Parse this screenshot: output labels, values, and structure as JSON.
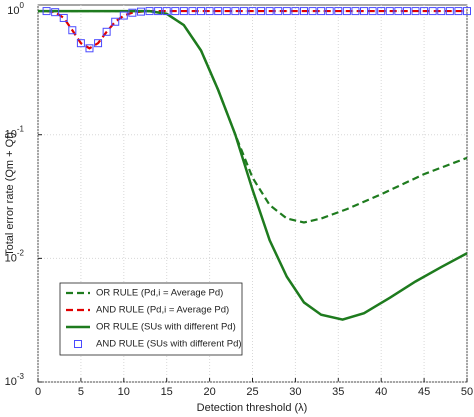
{
  "chart_data": {
    "type": "line",
    "x_label": "Detection threshold (λ)",
    "y_label": "Total error rate (Qm + Qf)",
    "xlim": [
      0,
      50
    ],
    "xticks": [
      0,
      5,
      10,
      15,
      20,
      25,
      30,
      35,
      40,
      45,
      50
    ],
    "ylim": [
      0.001,
      1.12
    ],
    "yticks": [
      {
        "value": 0.001,
        "label": "10",
        "exponent": "-3"
      },
      {
        "value": 0.01,
        "label": "10",
        "exponent": "-2"
      },
      {
        "value": 0.1,
        "label": "10",
        "exponent": "-1"
      },
      {
        "value": 1,
        "label": "10",
        "exponent": "0"
      }
    ],
    "y_scale": "log",
    "grid": true,
    "legend_position": "lower left",
    "series": [
      {
        "name": "OR RULE (Pd,i = Average Pd)",
        "color": "#1e7b1e",
        "line_style": "dashed",
        "marker": "none",
        "x": [
          0,
          5,
          10,
          13,
          15,
          17,
          19,
          21,
          23,
          25,
          27,
          29,
          31,
          33,
          36,
          40,
          45,
          50
        ],
        "values": [
          1,
          1,
          1,
          1,
          0.95,
          0.77,
          0.48,
          0.23,
          0.1,
          0.045,
          0.027,
          0.021,
          0.0195,
          0.021,
          0.025,
          0.033,
          0.048,
          0.065
        ]
      },
      {
        "name": "AND RULE (Pd,i = Average Pd)",
        "color": "#e00000",
        "line_style": "dashed",
        "marker": "none",
        "x": [
          1,
          2,
          3,
          4,
          5,
          6,
          7,
          8,
          9,
          10,
          11,
          12,
          13,
          20,
          30,
          40,
          50
        ],
        "values": [
          1,
          0.98,
          0.88,
          0.7,
          0.55,
          0.5,
          0.55,
          0.68,
          0.82,
          0.92,
          0.97,
          0.99,
          1,
          1,
          1,
          1,
          1
        ]
      },
      {
        "name": "OR RULE (SUs with different Pd)",
        "color": "#1e7b1e",
        "line_style": "solid",
        "marker": "none",
        "x": [
          0,
          5,
          10,
          13,
          15,
          17,
          19,
          21,
          23,
          25,
          27,
          29,
          31,
          33,
          35.5,
          38,
          41,
          44,
          47,
          50
        ],
        "values": [
          1,
          1,
          1,
          1,
          0.95,
          0.77,
          0.48,
          0.23,
          0.1,
          0.036,
          0.014,
          0.0071,
          0.0044,
          0.0035,
          0.0032,
          0.0036,
          0.0048,
          0.0065,
          0.0085,
          0.011
        ]
      },
      {
        "name": "AND RULE (SUs with different Pd)",
        "color": "#4a4aff",
        "line_style": "none",
        "marker": "square",
        "x": [
          1,
          2,
          3,
          4,
          5,
          6,
          7,
          8,
          9,
          10,
          11,
          12,
          13,
          14,
          15,
          16,
          17,
          18,
          19,
          20,
          21,
          22,
          23,
          24,
          25,
          26,
          27,
          28,
          29,
          30,
          31,
          32,
          33,
          34,
          35,
          36,
          37,
          38,
          39,
          40,
          41,
          42,
          43,
          44,
          45,
          46,
          47,
          48,
          49,
          50
        ],
        "values": [
          1,
          0.98,
          0.88,
          0.7,
          0.55,
          0.5,
          0.55,
          0.68,
          0.82,
          0.92,
          0.97,
          0.99,
          1,
          1,
          1,
          1,
          1,
          1,
          1,
          1,
          1,
          1,
          1,
          1,
          1,
          1,
          1,
          1,
          1,
          1,
          1,
          1,
          1,
          1,
          1,
          1,
          1,
          1,
          1,
          1,
          1,
          1,
          1,
          1,
          1,
          1,
          1,
          1,
          1,
          1
        ]
      }
    ]
  }
}
